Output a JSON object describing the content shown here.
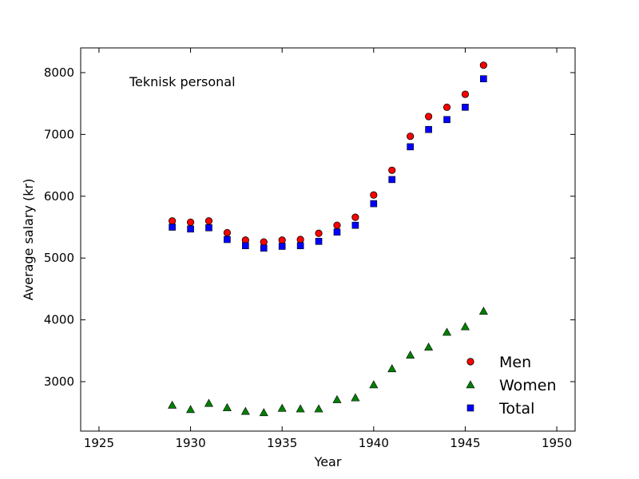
{
  "chart_data": {
    "type": "scatter",
    "annotation": "Teknisk personal",
    "xlabel": "Year",
    "ylabel": "Average salary (kr)",
    "xlim": [
      1924,
      1951
    ],
    "ylim": [
      2200,
      8400
    ],
    "xticks": [
      1925,
      1930,
      1935,
      1940,
      1945,
      1950
    ],
    "yticks": [
      3000,
      4000,
      5000,
      6000,
      7000,
      8000
    ],
    "legend_position": "lower-right",
    "grid": false,
    "x": [
      1929,
      1930,
      1931,
      1932,
      1933,
      1934,
      1935,
      1936,
      1937,
      1938,
      1939,
      1940,
      1941,
      1942,
      1943,
      1944,
      1945,
      1946
    ],
    "series": [
      {
        "name": "Men",
        "marker": "circle",
        "color": "#ff0000",
        "values": [
          5600,
          5580,
          5600,
          5410,
          5290,
          5260,
          5290,
          5300,
          5400,
          5530,
          5660,
          6020,
          6420,
          6970,
          7290,
          7440,
          7650,
          8120
        ]
      },
      {
        "name": "Women",
        "marker": "triangle",
        "color": "#008000",
        "values": [
          2620,
          2550,
          2650,
          2580,
          2520,
          2500,
          2570,
          2560,
          2560,
          2710,
          2740,
          2950,
          3210,
          3430,
          3560,
          3800,
          3890,
          4140
        ]
      },
      {
        "name": "Total",
        "marker": "square",
        "color": "#0000ff",
        "values": [
          5500,
          5470,
          5490,
          5300,
          5200,
          5160,
          5190,
          5200,
          5270,
          5420,
          5530,
          5880,
          6270,
          6800,
          7080,
          7240,
          7440,
          7900
        ]
      }
    ]
  }
}
